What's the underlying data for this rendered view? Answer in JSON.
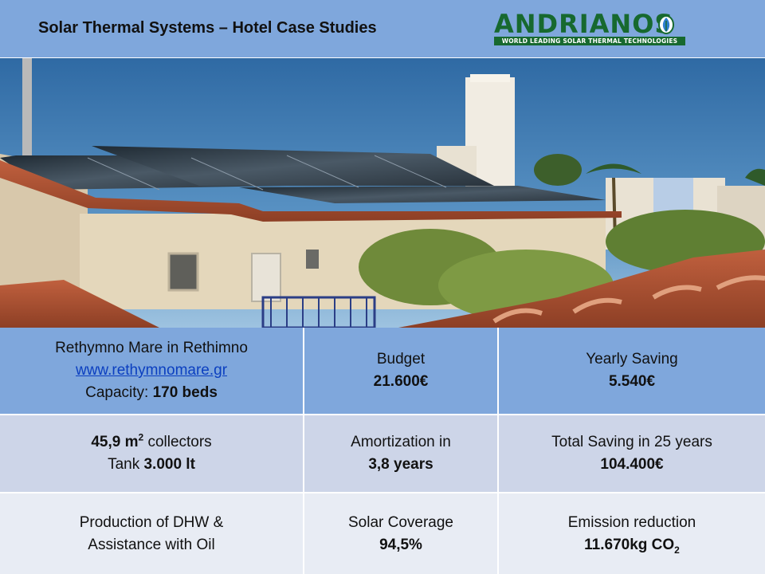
{
  "header": {
    "title": "Solar Thermal Systems – Hotel Case Studies",
    "logo": {
      "name": "ANDRIANOS",
      "tagline": "WORLD LEADING SOLAR THERMAL TECHNOLOGIES"
    }
  },
  "table": {
    "row1": {
      "hotel": "Rethymno Mare in Rethimno",
      "website": "www.rethymnomare.gr",
      "capacity_label": "Capacity:",
      "capacity_value": "170 beds",
      "budget_label": "Budget",
      "budget_value": "21.600€",
      "yearly_label": "Yearly Saving",
      "yearly_value": "5.540€"
    },
    "row2": {
      "collectors_value": "45,9 m",
      "collectors_sup": "2",
      "collectors_label": "collectors",
      "tank_label": "Tank",
      "tank_value": "3.000 lt",
      "amortization_label": "Amortization in",
      "amortization_value": "3,8 years",
      "total_label": "Total Saving in 25 years",
      "total_value": "104.400€"
    },
    "row3": {
      "production_line1": "Production of DHW &",
      "production_line2": "Assistance with Oil",
      "coverage_label": "Solar Coverage",
      "coverage_value": "94,5%",
      "emission_label": "Emission reduction",
      "emission_value": "11.670kg CO",
      "emission_sub": "2"
    }
  },
  "colors": {
    "header_bg": "#7fa7dc",
    "row1_bg": "#7fa7dc",
    "row2_bg": "#cdd5e8",
    "row3_bg": "#e8ecf4",
    "logo_green": "#17692f"
  }
}
